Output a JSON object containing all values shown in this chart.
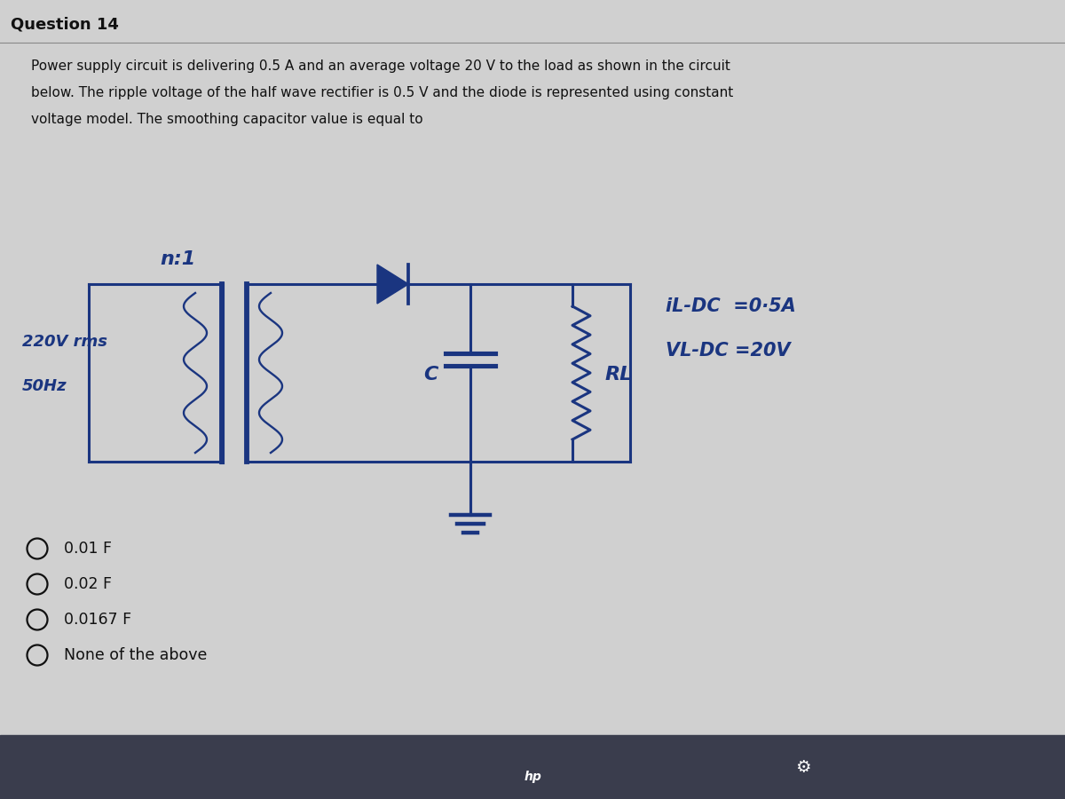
{
  "title": "Question 14",
  "question_text_lines": [
    "Power supply circuit is delivering 0.5 A and an average voltage 20 V to the load as shown in the circuit",
    "below. The ripple voltage of the half wave rectifier is 0.5 V and the diode is represented using constant",
    "voltage model. The smoothing capacitor value is equal to"
  ],
  "options": [
    "0.01 F",
    "0.02 F",
    "0.0167 F",
    "None of the above"
  ],
  "bg_color": "#d0d0d0",
  "title_color": "#111111",
  "text_color": "#111111",
  "lc": "#1a3580",
  "hw_color": "#1a3580",
  "annotation_color": "#1a3580",
  "taskbar_color": "#3a3d4d"
}
